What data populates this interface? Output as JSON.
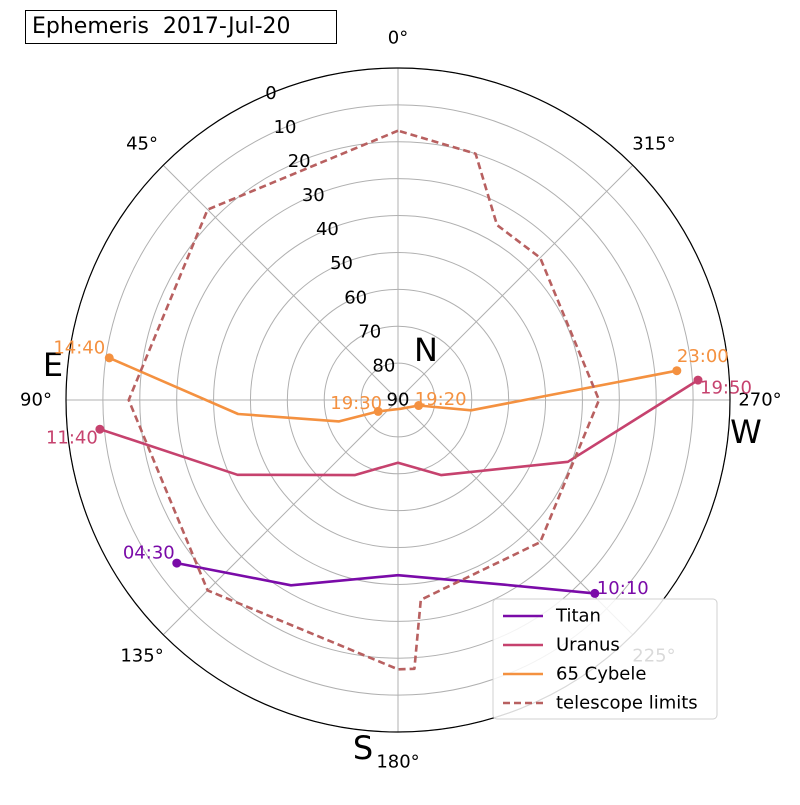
{
  "title": "Ephemeris  2017-Jul-20",
  "chart_data": {
    "type": "polar-line",
    "grid": true,
    "legend_placement": "lower-right",
    "theta_zero": "N",
    "theta_direction": "counter-clockwise",
    "radial_axis": {
      "label": "",
      "range": [
        0,
        90
      ],
      "inverted": true,
      "ticks": [
        0,
        10,
        20,
        30,
        40,
        50,
        60,
        70,
        80,
        90
      ],
      "tick_labels": [
        "90",
        "80",
        "70",
        "60",
        "50",
        "40",
        "30",
        "20",
        "10",
        "0"
      ]
    },
    "angular_ticks": [
      {
        "deg": 0,
        "label": "0°"
      },
      {
        "deg": 45,
        "label": "45°"
      },
      {
        "deg": 90,
        "label": "90°"
      },
      {
        "deg": 135,
        "label": "135°"
      },
      {
        "deg": 180,
        "label": "180°"
      },
      {
        "deg": 225,
        "label": "225°"
      },
      {
        "deg": 270,
        "label": "270°"
      },
      {
        "deg": 315,
        "label": "315°"
      }
    ],
    "compass": [
      {
        "deg": 0,
        "label": "N"
      },
      {
        "deg": 90,
        "label": "E"
      },
      {
        "deg": 180,
        "label": "S"
      },
      {
        "deg": 270,
        "label": "W"
      }
    ],
    "series": [
      {
        "name": "Titan",
        "color": "#7a0ba8",
        "style": "solid",
        "points": [
          [
            126.4,
            15.5
          ],
          [
            150,
            32.0
          ],
          [
            180,
            42.5
          ],
          [
            210,
            32.2
          ],
          [
            225.5,
            15.2
          ]
        ],
        "start": {
          "label": "04:30",
          "az": 126.4,
          "alt": 15.5
        },
        "end": {
          "label": "10:10",
          "az": 225.5,
          "alt": 15.2
        }
      },
      {
        "name": "Uranus",
        "color": "#c6426e",
        "style": "solid",
        "points": [
          [
            95.6,
            8.8
          ],
          [
            115,
            42.0
          ],
          [
            150,
            66.5
          ],
          [
            180,
            73.0
          ],
          [
            210,
            66.5
          ],
          [
            250,
            41.0
          ],
          [
            273.8,
            8.5
          ]
        ],
        "start": {
          "label": "11:40",
          "az": 95.6,
          "alt": 8.8
        },
        "end": {
          "label": "19:50",
          "az": 273.8,
          "alt": 8.5
        }
      },
      {
        "name": "65 Cybele",
        "color": "#f49140",
        "style": "solid",
        "points": [
          [
            81.7,
            10.9
          ],
          [
            95,
            46.5
          ],
          [
            110,
            73.0
          ],
          [
            120,
            83.8
          ],
          [
            200,
            87.5
          ],
          [
            255,
            84.2
          ],
          [
            262,
            70.0
          ],
          [
            276.0,
            14.0
          ]
        ],
        "start": {
          "label": "14:40",
          "az": 81.7,
          "alt": 10.9
        },
        "end": {
          "label": "23:00",
          "az": 276.0,
          "alt": 14.0
        },
        "mid_marks": [
          {
            "label": "19:30",
            "az": 120.0,
            "alt": 83.8
          },
          {
            "label": "19:20",
            "az": 255.0,
            "alt": 84.2
          }
        ]
      },
      {
        "name": "telescope limits",
        "color": "#b86060",
        "style": "dashed",
        "points": [
          [
            360,
            17.0
          ],
          [
            45,
            17.0
          ],
          [
            90,
            17.0
          ],
          [
            135,
            17.0
          ],
          [
            180,
            17.0
          ],
          [
            183.5,
            17.0
          ],
          [
            186.5,
            35.5
          ],
          [
            225,
            35.5
          ],
          [
            270,
            35.5
          ],
          [
            315,
            35.5
          ],
          [
            330.5,
            35.5
          ],
          [
            342.5,
            20.0
          ],
          [
            360,
            17.0
          ]
        ]
      }
    ]
  }
}
